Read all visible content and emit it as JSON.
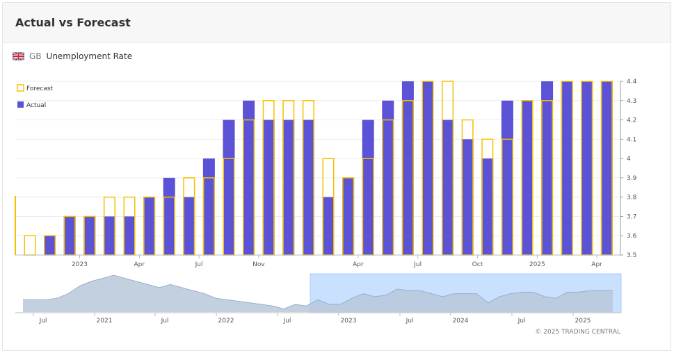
{
  "header": {
    "title": "Actual vs Forecast"
  },
  "subtitle": {
    "country_code": "GB",
    "indicator": "Unemployment Rate"
  },
  "legend": {
    "forecast_label": "Forecast",
    "actual_label": "Actual"
  },
  "copyright": "© 2025 TRADING CENTRAL",
  "colors": {
    "actual": "#5b52d6",
    "forecast": "#f5c000",
    "navigator_fill": "#b8c8da",
    "navigator_selection": "#c9e0ff"
  },
  "chart_data": {
    "type": "bar",
    "title": "Unemployment Rate",
    "ylim": [
      3.5,
      4.4
    ],
    "y_ticks": [
      "3.5",
      "3.6",
      "3.7",
      "3.8",
      "3.9",
      "4",
      "4.1",
      "4.2",
      "4.3",
      "4.4"
    ],
    "x_ticks": [
      {
        "label": "2023",
        "index": 3
      },
      {
        "label": "Apr",
        "index": 6
      },
      {
        "label": "Jul",
        "index": 9
      },
      {
        "label": "Nov",
        "index": 12
      },
      {
        "label": "Apr",
        "index": 17
      },
      {
        "label": "Jul",
        "index": 20
      },
      {
        "label": "Oct",
        "index": 23
      },
      {
        "label": "2025",
        "index": 26
      },
      {
        "label": "Apr",
        "index": 29
      }
    ],
    "series": [
      {
        "name": "Actual",
        "values": [
          3.5,
          3.6,
          3.7,
          3.7,
          3.7,
          3.7,
          3.8,
          3.9,
          3.8,
          4.0,
          4.2,
          4.3,
          4.2,
          4.2,
          4.2,
          3.8,
          3.9,
          4.2,
          4.3,
          4.4,
          4.4,
          4.2,
          4.1,
          4.0,
          4.3,
          4.3,
          4.4,
          4.4,
          4.4,
          4.4
        ]
      },
      {
        "name": "Forecast",
        "values": [
          3.6,
          3.6,
          3.7,
          3.7,
          3.8,
          3.8,
          3.8,
          3.8,
          3.9,
          3.9,
          4.0,
          4.2,
          4.3,
          4.3,
          4.3,
          4.0,
          3.9,
          4.0,
          4.2,
          4.3,
          4.4,
          4.4,
          4.2,
          4.1,
          4.1,
          4.3,
          4.3,
          4.4,
          4.4,
          4.4
        ]
      }
    ],
    "navigator": {
      "x_ticks": [
        "Jul",
        "2021",
        "Jul",
        "2022",
        "Jul",
        "2023",
        "Jul",
        "2024",
        "Jul",
        "2025"
      ],
      "values": [
        3.8,
        3.8,
        3.8,
        3.9,
        4.2,
        4.7,
        5.0,
        5.2,
        5.4,
        5.2,
        5.0,
        4.8,
        4.6,
        4.8,
        4.6,
        4.4,
        4.2,
        3.9,
        3.8,
        3.7,
        3.6,
        3.5,
        3.4,
        3.2,
        3.5,
        3.4,
        3.8,
        3.5,
        3.5,
        3.9,
        4.2,
        4.0,
        4.1,
        4.5,
        4.4,
        4.4,
        4.2,
        4.0,
        4.2,
        4.2,
        4.2,
        3.6,
        4.0,
        4.2,
        4.3,
        4.3,
        4.0,
        3.9,
        4.3,
        4.3,
        4.4,
        4.4,
        4.4
      ]
    }
  }
}
